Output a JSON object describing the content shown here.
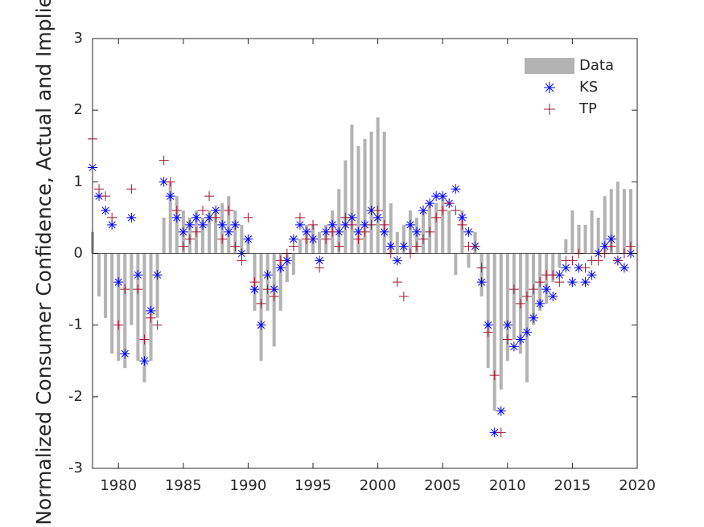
{
  "chart_data": {
    "type": "bar",
    "ylabel": "Normalized Consumer Confidence, Actual and Implied",
    "xlim": [
      1978,
      2020
    ],
    "xticks": [
      1980,
      1985,
      1990,
      1995,
      2000,
      2005,
      2010,
      2015,
      2020
    ],
    "ylim": [
      -3,
      3
    ],
    "yticks": [
      -3,
      -2,
      -1,
      0,
      1,
      2,
      3
    ],
    "legend": "top-right",
    "x": [
      1978,
      1978.5,
      1979,
      1979.5,
      1980,
      1980.5,
      1981,
      1981.5,
      1982,
      1982.5,
      1983,
      1983.5,
      1984,
      1984.5,
      1985,
      1985.5,
      1986,
      1986.5,
      1987,
      1987.5,
      1988,
      1988.5,
      1989,
      1989.5,
      1990,
      1990.5,
      1991,
      1991.5,
      1992,
      1992.5,
      1993,
      1993.5,
      1994,
      1994.5,
      1995,
      1995.5,
      1996,
      1996.5,
      1997,
      1997.5,
      1998,
      1998.5,
      1999,
      1999.5,
      2000,
      2000.5,
      2001,
      2001.5,
      2002,
      2002.5,
      2003,
      2003.5,
      2004,
      2004.5,
      2005,
      2005.5,
      2006,
      2006.5,
      2007,
      2007.5,
      2008,
      2008.5,
      2009,
      2009.5,
      2010,
      2010.5,
      2011,
      2011.5,
      2012,
      2012.5,
      2013,
      2013.5,
      2014,
      2014.5,
      2015,
      2015.5,
      2016,
      2016.5,
      2017,
      2017.5,
      2018,
      2018.5,
      2019,
      2019.5
    ],
    "series": [
      {
        "name": "Data",
        "type": "bar",
        "color": "#b3b3b3",
        "values": [
          0.3,
          -0.6,
          -0.9,
          -1.4,
          -1.5,
          -1.6,
          -1.0,
          -1.5,
          -1.8,
          -1.5,
          -0.9,
          0.5,
          1.0,
          0.8,
          0.6,
          0.5,
          0.6,
          0.5,
          0.6,
          0.6,
          0.7,
          0.8,
          0.6,
          0.4,
          0.2,
          -0.8,
          -1.5,
          -0.8,
          -1.3,
          -0.8,
          -0.4,
          -0.3,
          0.2,
          0.4,
          0.4,
          0.3,
          0.4,
          0.6,
          0.9,
          1.3,
          1.8,
          1.5,
          1.6,
          1.7,
          1.9,
          1.7,
          0.7,
          0.3,
          0.4,
          0.6,
          0.5,
          0.6,
          0.7,
          0.7,
          0.8,
          0.6,
          -0.3,
          0.6,
          -0.2,
          0.3,
          -0.6,
          -1.6,
          -2.2,
          -1.9,
          -1.5,
          -1.2,
          -1.4,
          -1.8,
          -1.0,
          -0.8,
          -0.7,
          -0.4,
          -0.2,
          0.2,
          0.6,
          0.4,
          0.4,
          0.6,
          0.5,
          0.8,
          0.9,
          1.0,
          0.9,
          0.9
        ]
      },
      {
        "name": "KS",
        "type": "scatter",
        "marker": "asterisk",
        "color": "#0000ff",
        "values": [
          1.2,
          0.8,
          0.6,
          0.4,
          -0.4,
          -1.4,
          0.5,
          -0.3,
          -1.5,
          -0.8,
          -0.3,
          1.0,
          0.8,
          0.5,
          0.3,
          0.4,
          0.5,
          0.4,
          0.5,
          0.6,
          0.4,
          0.3,
          0.4,
          0.0,
          0.2,
          -0.5,
          -1.0,
          -0.3,
          -0.5,
          -0.2,
          -0.1,
          0.2,
          0.4,
          0.3,
          0.2,
          -0.1,
          0.3,
          0.4,
          0.3,
          0.4,
          0.5,
          0.3,
          0.4,
          0.6,
          0.5,
          0.3,
          0.1,
          -0.1,
          0.1,
          0.4,
          0.3,
          0.6,
          0.7,
          0.8,
          0.8,
          0.7,
          0.9,
          0.5,
          0.3,
          0.1,
          -0.4,
          -1.0,
          -2.5,
          -2.2,
          -1.0,
          -1.3,
          -1.2,
          -1.1,
          -0.9,
          -0.7,
          -0.5,
          -0.6,
          -0.3,
          -0.2,
          -0.4,
          -0.2,
          -0.4,
          -0.3,
          0.0,
          0.1,
          0.2,
          -0.1,
          -0.2,
          0.0
        ]
      },
      {
        "name": "TP",
        "type": "scatter",
        "marker": "plus",
        "color": "#a2142f",
        "values": [
          1.6,
          0.9,
          0.8,
          0.5,
          -1.0,
          -0.5,
          0.9,
          -0.5,
          -1.2,
          -0.9,
          -1.0,
          1.3,
          1.0,
          0.6,
          0.1,
          0.2,
          0.3,
          0.6,
          0.8,
          0.5,
          0.2,
          0.6,
          0.1,
          -0.1,
          0.5,
          -0.4,
          -0.7,
          -0.5,
          -0.6,
          -0.1,
          0.0,
          0.1,
          0.5,
          0.2,
          0.4,
          -0.2,
          0.2,
          0.3,
          0.1,
          0.5,
          0.4,
          0.2,
          0.3,
          0.4,
          0.6,
          0.4,
          0.0,
          -0.4,
          -0.6,
          0.0,
          0.1,
          0.2,
          0.3,
          0.5,
          0.6,
          0.7,
          0.6,
          0.4,
          0.1,
          0.1,
          -0.2,
          -1.1,
          -1.7,
          -2.5,
          -1.2,
          -0.5,
          -0.7,
          -0.6,
          -0.5,
          -0.4,
          -0.3,
          -0.3,
          -0.4,
          -0.1,
          -0.1,
          0.0,
          -0.2,
          -0.1,
          -0.1,
          0.0,
          0.1,
          -0.1,
          0.0,
          0.1
        ]
      }
    ]
  }
}
